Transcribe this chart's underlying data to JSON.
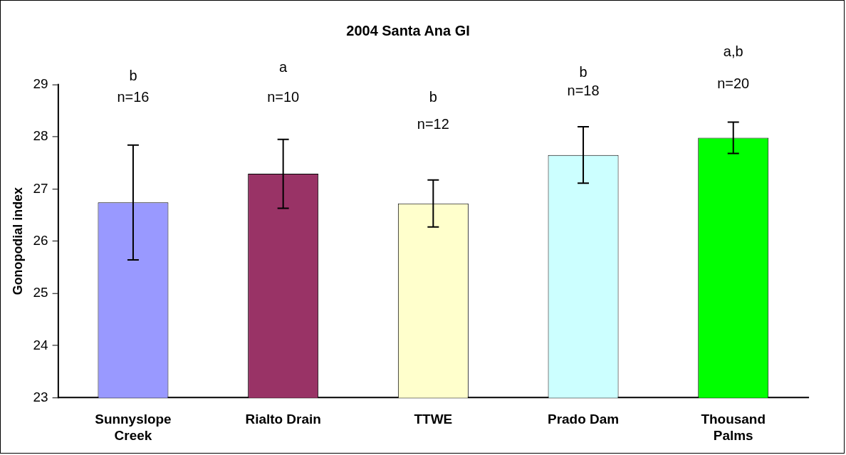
{
  "chart_data": {
    "type": "bar",
    "title": "2004 Santa Ana GI",
    "ylabel": "Gonopodial index",
    "categories": [
      "Sunnyslope Creek",
      "Rialto Drain",
      "TTWE",
      "Prado Dam",
      "Thousand Palms"
    ],
    "values": [
      26.74,
      27.29,
      26.72,
      27.65,
      27.98
    ],
    "colors": [
      "#9999ff",
      "#993366",
      "#ffffcc",
      "#ccffff",
      "#00ff00"
    ],
    "errors": [
      1.1,
      0.66,
      0.45,
      0.54,
      0.3
    ],
    "ylim": [
      23,
      29
    ],
    "yticks": [
      23,
      24,
      25,
      26,
      27,
      28,
      29
    ],
    "grid": false,
    "legend": false,
    "annotations": [
      "b",
      "n=16",
      "a",
      "n=10",
      "b",
      "n=12",
      "b",
      "n=18",
      "a,b",
      "n=20"
    ]
  }
}
